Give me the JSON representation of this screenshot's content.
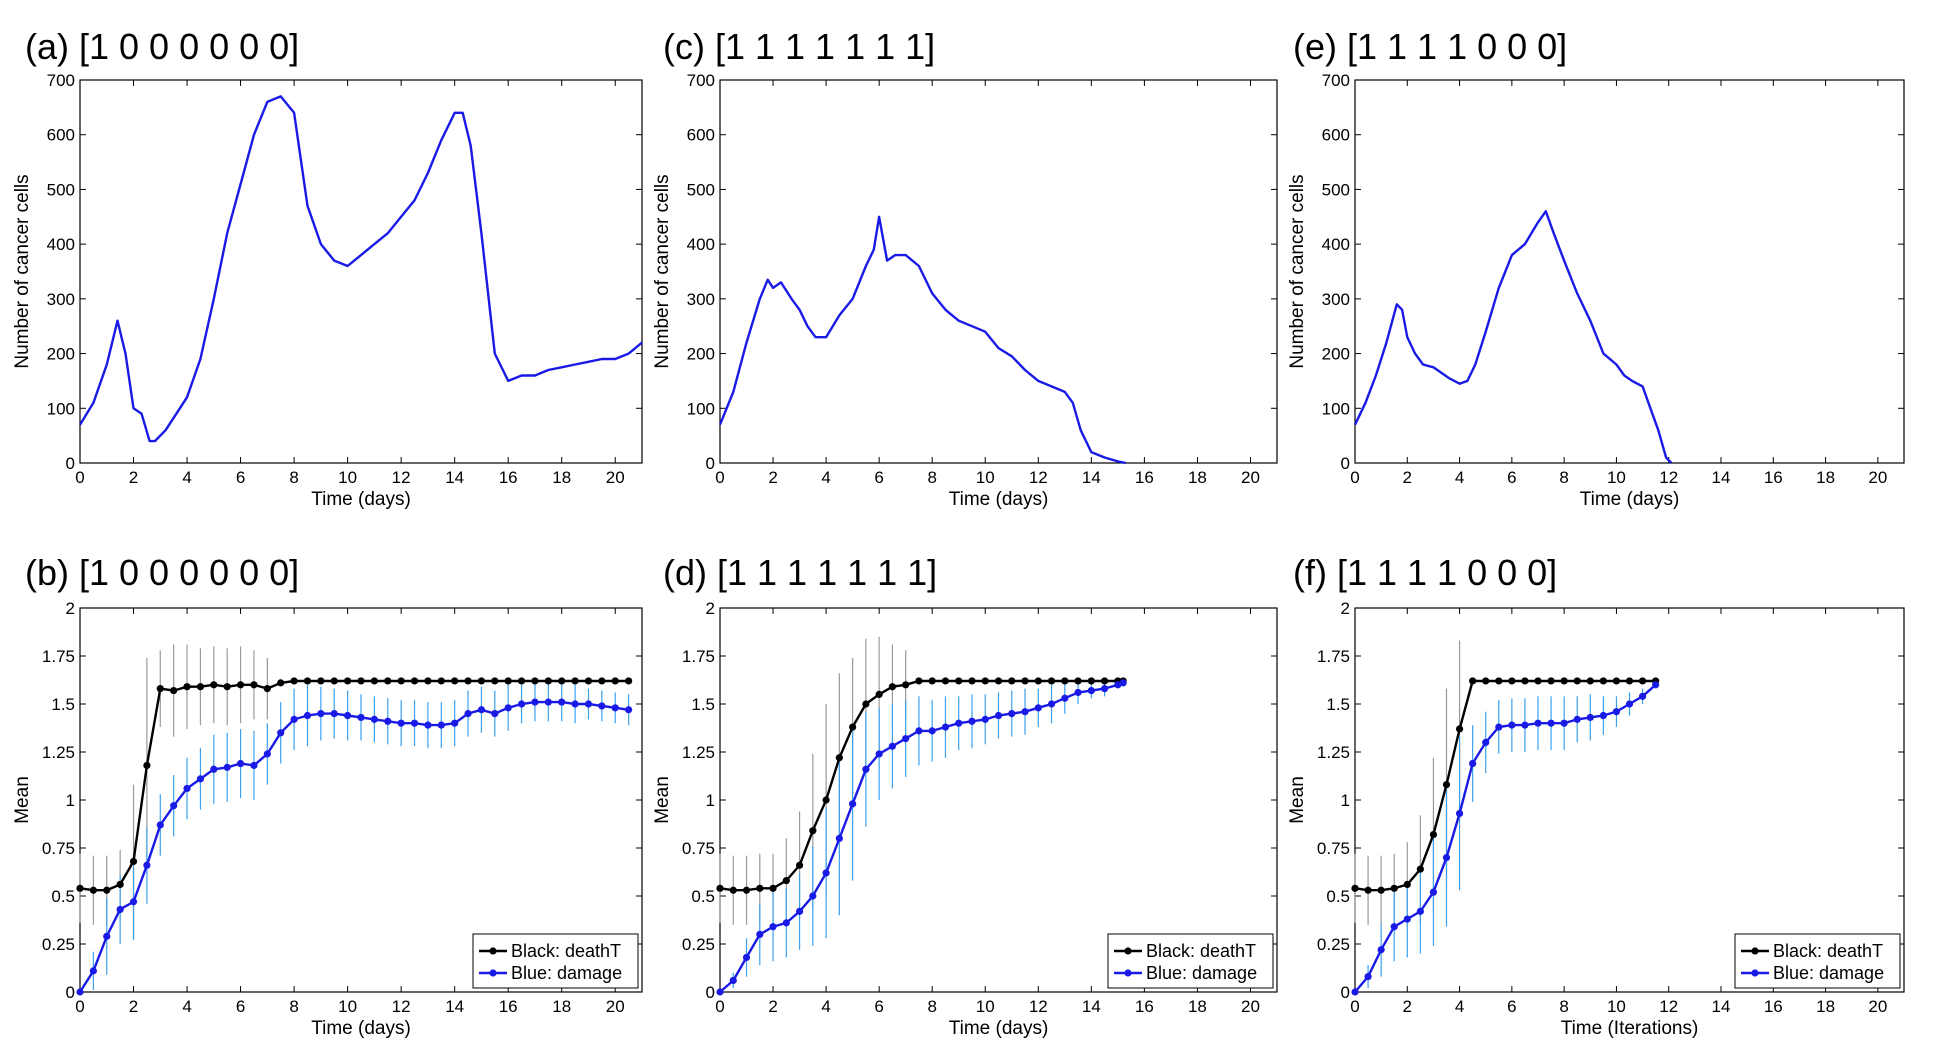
{
  "colors": {
    "cells": "#1a1ae6",
    "deathT": "#000000",
    "damage": "#1a1ae6",
    "deathT_err": "#9a9a9a",
    "damage_err": "#3aa0ee"
  },
  "chart_data": [
    {
      "id": "a",
      "type": "line",
      "title": "(a) [1 0 0 0 0 0 0]",
      "xlabel": "Time (days)",
      "ylabel": "Number of cancer cells",
      "xlim": [
        0,
        21
      ],
      "ylim": [
        0,
        700
      ],
      "xticks": [
        "0",
        "2",
        "4",
        "6",
        "8",
        "10",
        "12",
        "14",
        "16",
        "18",
        "20"
      ],
      "yticks": [
        "0",
        "100",
        "200",
        "300",
        "400",
        "500",
        "600",
        "700"
      ],
      "series": [
        {
          "name": "cancer cells",
          "x": [
            0,
            0.5,
            1,
            1.4,
            1.7,
            2,
            2.3,
            2.6,
            2.8,
            3.2,
            3.6,
            4,
            4.5,
            5,
            5.5,
            6,
            6.5,
            7,
            7.5,
            8,
            8.5,
            9,
            9.5,
            10,
            10.5,
            11,
            11.5,
            12,
            12.5,
            13,
            13.5,
            14,
            14.3,
            14.6,
            15,
            15.5,
            16,
            16.5,
            17,
            17.5,
            18,
            18.5,
            19,
            19.5,
            20,
            20.5,
            21
          ],
          "y": [
            70,
            110,
            180,
            260,
            200,
            100,
            90,
            40,
            40,
            60,
            90,
            120,
            190,
            300,
            420,
            510,
            600,
            660,
            670,
            640,
            470,
            400,
            370,
            360,
            380,
            400,
            420,
            450,
            480,
            530,
            590,
            640,
            640,
            580,
            420,
            200,
            150,
            160,
            160,
            170,
            175,
            180,
            185,
            190,
            190,
            200,
            220
          ]
        }
      ]
    },
    {
      "id": "b",
      "type": "line",
      "title": "(b) [1 0 0 0 0 0 0]",
      "xlabel": "Time (days)",
      "ylabel": "Mean",
      "xlim": [
        0,
        21
      ],
      "ylim": [
        0,
        2
      ],
      "xticks": [
        "0",
        "2",
        "4",
        "6",
        "8",
        "10",
        "12",
        "14",
        "16",
        "18",
        "20"
      ],
      "yticks": [
        "0",
        "0.25",
        "0.5",
        "0.75",
        "1",
        "1.25",
        "1.5",
        "1.75",
        "2"
      ],
      "legend": [
        "Black: deathT",
        "Blue: damage"
      ],
      "series": [
        {
          "name": "Black: deathT",
          "x": [
            0,
            0.5,
            1,
            1.5,
            2,
            2.5,
            3,
            3.5,
            4,
            4.5,
            5,
            5.5,
            6,
            6.5,
            7,
            7.5,
            8,
            8.5,
            9,
            9.5,
            10,
            10.5,
            11,
            11.5,
            12,
            12.5,
            13,
            13.5,
            14,
            14.5,
            15,
            15.5,
            16,
            16.5,
            17,
            17.5,
            18,
            18.5,
            19,
            19.5,
            20,
            20.5
          ],
          "y": [
            0.54,
            0.53,
            0.53,
            0.56,
            0.68,
            1.18,
            1.58,
            1.57,
            1.59,
            1.59,
            1.6,
            1.59,
            1.6,
            1.6,
            1.58,
            1.61,
            1.62,
            1.62,
            1.62,
            1.62,
            1.62,
            1.62,
            1.62,
            1.62,
            1.62,
            1.62,
            1.62,
            1.62,
            1.62,
            1.62,
            1.62,
            1.62,
            1.62,
            1.62,
            1.62,
            1.62,
            1.62,
            1.62,
            1.62,
            1.62,
            1.62,
            1.62
          ],
          "err": [
            0.18,
            0.18,
            0.18,
            0.18,
            0.4,
            0.56,
            0.2,
            0.24,
            0.22,
            0.2,
            0.2,
            0.2,
            0.2,
            0.18,
            0.16,
            0.02,
            0.02,
            0.02,
            0.02,
            0.02,
            0.02,
            0.02,
            0.02,
            0.02,
            0.02,
            0.02,
            0.02,
            0.02,
            0.02,
            0.02,
            0.02,
            0.02,
            0.02,
            0.02,
            0.02,
            0.02,
            0.02,
            0.02,
            0.02,
            0.02,
            0.02,
            0.02
          ]
        },
        {
          "name": "Blue: damage",
          "x": [
            0,
            0.5,
            1,
            1.5,
            2,
            2.5,
            3,
            3.5,
            4,
            4.5,
            5,
            5.5,
            6,
            6.5,
            7,
            7.5,
            8,
            8.5,
            9,
            9.5,
            10,
            10.5,
            11,
            11.5,
            12,
            12.5,
            13,
            13.5,
            14,
            14.5,
            15,
            15.5,
            16,
            16.5,
            17,
            17.5,
            18,
            18.5,
            19,
            19.5,
            20,
            20.5
          ],
          "y": [
            0,
            0.11,
            0.29,
            0.43,
            0.47,
            0.66,
            0.87,
            0.97,
            1.06,
            1.11,
            1.16,
            1.17,
            1.19,
            1.18,
            1.24,
            1.35,
            1.42,
            1.44,
            1.45,
            1.45,
            1.44,
            1.43,
            1.42,
            1.41,
            1.4,
            1.4,
            1.39,
            1.39,
            1.4,
            1.45,
            1.47,
            1.45,
            1.48,
            1.5,
            1.51,
            1.51,
            1.51,
            1.5,
            1.5,
            1.49,
            1.48,
            1.47
          ],
          "err": [
            0.02,
            0.1,
            0.2,
            0.18,
            0.2,
            0.2,
            0.16,
            0.16,
            0.16,
            0.16,
            0.18,
            0.18,
            0.18,
            0.18,
            0.16,
            0.16,
            0.16,
            0.16,
            0.14,
            0.13,
            0.13,
            0.12,
            0.12,
            0.12,
            0.12,
            0.12,
            0.12,
            0.12,
            0.12,
            0.12,
            0.12,
            0.12,
            0.12,
            0.1,
            0.1,
            0.1,
            0.1,
            0.1,
            0.08,
            0.08,
            0.08,
            0.08
          ]
        }
      ]
    },
    {
      "id": "c",
      "type": "line",
      "title": "(c) [1 1 1 1 1 1 1]",
      "xlabel": "Time (days)",
      "ylabel": "Number of cancer cells",
      "xlim": [
        0,
        21
      ],
      "ylim": [
        0,
        700
      ],
      "xticks": [
        "0",
        "2",
        "4",
        "6",
        "8",
        "10",
        "12",
        "14",
        "16",
        "18",
        "20"
      ],
      "yticks": [
        "0",
        "100",
        "200",
        "300",
        "400",
        "500",
        "600",
        "700"
      ],
      "series": [
        {
          "name": "cancer cells",
          "x": [
            0,
            0.5,
            1,
            1.5,
            1.8,
            2,
            2.3,
            2.7,
            3,
            3.3,
            3.6,
            4,
            4.5,
            5,
            5.5,
            5.8,
            6,
            6.3,
            6.6,
            7,
            7.5,
            8,
            8.5,
            9,
            9.5,
            10,
            10.5,
            11,
            11.5,
            12,
            12.5,
            13,
            13.3,
            13.6,
            14,
            14.5,
            15,
            15.3
          ],
          "y": [
            70,
            130,
            220,
            300,
            335,
            320,
            330,
            300,
            280,
            250,
            230,
            230,
            270,
            300,
            360,
            390,
            450,
            370,
            380,
            380,
            360,
            310,
            280,
            260,
            250,
            240,
            210,
            195,
            170,
            150,
            140,
            130,
            110,
            60,
            20,
            10,
            3,
            0
          ]
        }
      ]
    },
    {
      "id": "d",
      "type": "line",
      "title": "(d) [1 1 1 1 1 1 1]",
      "xlabel": "Time (days)",
      "ylabel": "Mean",
      "xlim": [
        0,
        21
      ],
      "ylim": [
        0,
        2
      ],
      "xticks": [
        "0",
        "2",
        "4",
        "6",
        "8",
        "10",
        "12",
        "14",
        "16",
        "18",
        "20"
      ],
      "yticks": [
        "0",
        "0.25",
        "0.5",
        "0.75",
        "1",
        "1.25",
        "1.5",
        "1.75",
        "2"
      ],
      "legend": [
        "Black: deathT",
        "Blue: damage"
      ],
      "series": [
        {
          "name": "Black: deathT",
          "x": [
            0,
            0.5,
            1,
            1.5,
            2,
            2.5,
            3,
            3.5,
            4,
            4.5,
            5,
            5.5,
            6,
            6.5,
            7,
            7.5,
            8,
            8.5,
            9,
            9.5,
            10,
            10.5,
            11,
            11.5,
            12,
            12.5,
            13,
            13.5,
            14,
            14.5,
            15,
            15.2
          ],
          "y": [
            0.54,
            0.53,
            0.53,
            0.54,
            0.54,
            0.58,
            0.66,
            0.84,
            1.0,
            1.22,
            1.38,
            1.5,
            1.55,
            1.59,
            1.6,
            1.62,
            1.62,
            1.62,
            1.62,
            1.62,
            1.62,
            1.62,
            1.62,
            1.62,
            1.62,
            1.62,
            1.62,
            1.62,
            1.62,
            1.62,
            1.62,
            1.62
          ],
          "err": [
            0.18,
            0.18,
            0.18,
            0.18,
            0.18,
            0.22,
            0.28,
            0.4,
            0.5,
            0.44,
            0.36,
            0.34,
            0.3,
            0.22,
            0.18,
            0.02,
            0.02,
            0.02,
            0.02,
            0.02,
            0.02,
            0.02,
            0.02,
            0.02,
            0.02,
            0.02,
            0.02,
            0.02,
            0.02,
            0.02,
            0.02,
            0.02
          ]
        },
        {
          "name": "Blue: damage",
          "x": [
            0,
            0.5,
            1,
            1.5,
            2,
            2.5,
            3,
            3.5,
            4,
            4.5,
            5,
            5.5,
            6,
            6.5,
            7,
            7.5,
            8,
            8.5,
            9,
            9.5,
            10,
            10.5,
            11,
            11.5,
            12,
            12.5,
            13,
            13.5,
            14,
            14.5,
            15,
            15.2
          ],
          "y": [
            0,
            0.06,
            0.18,
            0.3,
            0.34,
            0.36,
            0.42,
            0.5,
            0.62,
            0.8,
            0.98,
            1.16,
            1.24,
            1.28,
            1.32,
            1.36,
            1.36,
            1.38,
            1.4,
            1.41,
            1.42,
            1.44,
            1.45,
            1.46,
            1.48,
            1.5,
            1.53,
            1.56,
            1.57,
            1.58,
            1.6,
            1.61
          ],
          "err": [
            0.02,
            0.04,
            0.1,
            0.16,
            0.18,
            0.18,
            0.2,
            0.26,
            0.34,
            0.4,
            0.4,
            0.3,
            0.24,
            0.22,
            0.2,
            0.18,
            0.16,
            0.16,
            0.14,
            0.14,
            0.13,
            0.12,
            0.12,
            0.12,
            0.1,
            0.1,
            0.08,
            0.06,
            0.04,
            0.04,
            0.02,
            0.02
          ]
        }
      ]
    },
    {
      "id": "e",
      "type": "line",
      "title": "(e) [1 1 1 1 0 0 0]",
      "xlabel": "Time (days)",
      "ylabel": "Number of cancer cells",
      "xlim": [
        0,
        21
      ],
      "ylim": [
        0,
        700
      ],
      "xticks": [
        "0",
        "2",
        "4",
        "6",
        "8",
        "10",
        "12",
        "14",
        "16",
        "18",
        "20"
      ],
      "yticks": [
        "0",
        "100",
        "200",
        "300",
        "400",
        "500",
        "600",
        "700"
      ],
      "series": [
        {
          "name": "cancer cells",
          "x": [
            0,
            0.4,
            0.8,
            1.2,
            1.6,
            1.8,
            2,
            2.3,
            2.6,
            3,
            3.3,
            3.6,
            4,
            4.3,
            4.6,
            5,
            5.5,
            6,
            6.5,
            7,
            7.3,
            7.6,
            8,
            8.5,
            9,
            9.5,
            10,
            10.3,
            10.6,
            11,
            11.3,
            11.6,
            11.9,
            12.1
          ],
          "y": [
            70,
            110,
            160,
            220,
            290,
            280,
            230,
            200,
            180,
            175,
            165,
            155,
            145,
            150,
            180,
            240,
            320,
            380,
            400,
            440,
            460,
            420,
            370,
            310,
            260,
            200,
            180,
            160,
            150,
            140,
            100,
            60,
            10,
            0
          ]
        }
      ]
    },
    {
      "id": "f",
      "type": "line",
      "title": "(f) [1 1 1 1 0 0 0]",
      "xlabel": "Time (Iterations)",
      "ylabel": "Mean",
      "xlim": [
        0,
        21
      ],
      "ylim": [
        0,
        2
      ],
      "xticks": [
        "0",
        "2",
        "4",
        "6",
        "8",
        "10",
        "12",
        "14",
        "16",
        "18",
        "20"
      ],
      "yticks": [
        "0",
        "0.25",
        "0.5",
        "0.75",
        "1",
        "1.25",
        "1.5",
        "1.75",
        "2"
      ],
      "legend": [
        "Black: deathT",
        "Blue: damage"
      ],
      "series": [
        {
          "name": "Black: deathT",
          "x": [
            0,
            0.5,
            1,
            1.5,
            2,
            2.5,
            3,
            3.5,
            4,
            4.5,
            5,
            5.5,
            6,
            6.5,
            7,
            7.5,
            8,
            8.5,
            9,
            9.5,
            10,
            10.5,
            11,
            11.5
          ],
          "y": [
            0.54,
            0.53,
            0.53,
            0.54,
            0.56,
            0.64,
            0.82,
            1.08,
            1.37,
            1.62,
            1.62,
            1.62,
            1.62,
            1.62,
            1.62,
            1.62,
            1.62,
            1.62,
            1.62,
            1.62,
            1.62,
            1.62,
            1.62,
            1.62
          ],
          "err": [
            0.18,
            0.18,
            0.18,
            0.18,
            0.22,
            0.28,
            0.4,
            0.5,
            0.46,
            0.02,
            0.02,
            0.02,
            0.02,
            0.02,
            0.02,
            0.02,
            0.02,
            0.02,
            0.02,
            0.02,
            0.02,
            0.02,
            0.02,
            0.02
          ]
        },
        {
          "name": "Blue: damage",
          "x": [
            0,
            0.5,
            1,
            1.5,
            2,
            2.5,
            3,
            3.5,
            4,
            4.5,
            5,
            5.5,
            6,
            6.5,
            7,
            7.5,
            8,
            8.5,
            9,
            9.5,
            10,
            10.5,
            11,
            11.5
          ],
          "y": [
            0,
            0.08,
            0.22,
            0.34,
            0.38,
            0.42,
            0.52,
            0.7,
            0.93,
            1.19,
            1.3,
            1.38,
            1.39,
            1.39,
            1.4,
            1.4,
            1.4,
            1.42,
            1.43,
            1.44,
            1.46,
            1.5,
            1.54,
            1.6
          ],
          "err": [
            0.02,
            0.06,
            0.14,
            0.18,
            0.2,
            0.22,
            0.28,
            0.36,
            0.4,
            0.2,
            0.16,
            0.14,
            0.14,
            0.14,
            0.14,
            0.14,
            0.14,
            0.12,
            0.12,
            0.1,
            0.08,
            0.06,
            0.04,
            0.02
          ]
        }
      ]
    }
  ]
}
